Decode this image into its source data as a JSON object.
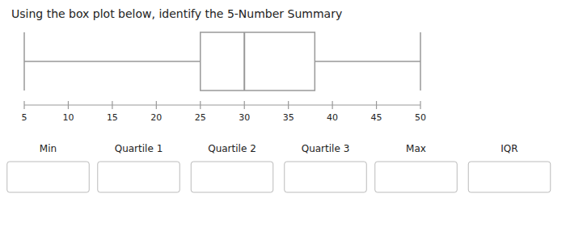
{
  "chart_data": {
    "type": "box",
    "title": "Using the box plot below, identify the 5-Number Summary",
    "min": 5,
    "q1": 25,
    "median": 30,
    "q3": 38,
    "max": 50,
    "xlim": [
      5,
      50
    ],
    "xticks": [
      5,
      10,
      15,
      20,
      25,
      30,
      35,
      40,
      45,
      50
    ],
    "annotations": [
      "Min",
      "Quartile 1",
      "Quartile 2",
      "Quartile 3",
      "Max",
      "IQR"
    ],
    "color": "#999999",
    "grid": false
  }
}
